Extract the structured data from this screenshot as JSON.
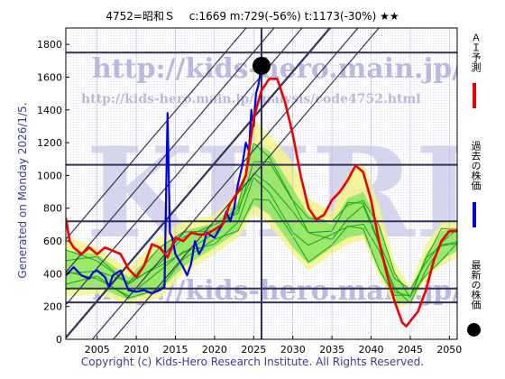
{
  "header": {
    "title": "4752=昭和Ｓ　 c:1669  m:729(-56%)  t:1173(-30%)  ★★"
  },
  "side_label": "Generated on Monday 2026/1/5.",
  "copyright": "Copyright (c) Kids-Hero Research Institute. All Rights Reserved.",
  "watermarks": {
    "url_top": "http://kids-hero.main.jp/",
    "url_mid": "http://kids-hero.main.jp/analysis/code4752.html",
    "url_bottom": "http://kids-hero.main.jp/",
    "logo": "KHRI"
  },
  "legend": {
    "ai_forecast": "ＡＩ予測",
    "past_price": "過去の株価",
    "latest_price": "最新の株価"
  },
  "colors": {
    "ai": "#ee0000",
    "past": "#0000dd",
    "latest": "#000000",
    "band_green": "#7ce35a",
    "band_yellow": "#f4f48c",
    "grid": "#33335a"
  },
  "chart_data": {
    "type": "line",
    "title": "4752=昭和Ｓ　 c:1669  m:729(-56%)  t:1173(-30%)  ★★",
    "xlabel": "",
    "ylabel": "",
    "xlim": [
      2001,
      2051
    ],
    "ylim": [
      0,
      1900
    ],
    "xticks": [
      2005,
      2010,
      2015,
      2020,
      2025,
      2030,
      2035,
      2040,
      2045,
      2050
    ],
    "yticks": [
      0,
      200,
      400,
      600,
      800,
      1000,
      1200,
      1400,
      1600,
      1800
    ],
    "grid": true,
    "annotations": {
      "current": 1669,
      "m": 729,
      "m_pct": -56,
      "t": 1173,
      "t_pct": -30,
      "rating": "★★"
    },
    "horizontal_lines": [
      225,
      310,
      720,
      1065,
      1750
    ],
    "vertical_line": 2026,
    "latest_point": [
      2026,
      1669
    ],
    "series": [
      {
        "name": "過去の株価",
        "color": "#0000dd",
        "points": [
          [
            2001,
            390
          ],
          [
            2001.6,
            420
          ],
          [
            2002,
            440
          ],
          [
            2003,
            390
          ],
          [
            2004,
            370
          ],
          [
            2004.5,
            410
          ],
          [
            2005,
            420
          ],
          [
            2006,
            380
          ],
          [
            2006.5,
            320
          ],
          [
            2007,
            390
          ],
          [
            2008,
            420
          ],
          [
            2009,
            300
          ],
          [
            2010,
            290
          ],
          [
            2011,
            300
          ],
          [
            2012,
            280
          ],
          [
            2013,
            300
          ],
          [
            2013.6,
            320
          ],
          [
            2014,
            1380
          ],
          [
            2014.3,
            650
          ],
          [
            2014.6,
            620
          ],
          [
            2015,
            520
          ],
          [
            2015.5,
            480
          ],
          [
            2016,
            440
          ],
          [
            2016.5,
            390
          ],
          [
            2017,
            460
          ],
          [
            2017.5,
            600
          ],
          [
            2018,
            520
          ],
          [
            2018.5,
            560
          ],
          [
            2019,
            650
          ],
          [
            2020,
            620
          ],
          [
            2021,
            700
          ],
          [
            2021.5,
            780
          ],
          [
            2022,
            720
          ],
          [
            2022.5,
            800
          ],
          [
            2023,
            950
          ],
          [
            2023.5,
            1050
          ],
          [
            2024,
            1200
          ],
          [
            2024.4,
            1150
          ],
          [
            2024.7,
            1400
          ],
          [
            2025,
            1300
          ],
          [
            2025.3,
            1500
          ],
          [
            2025.6,
            1550
          ],
          [
            2026,
            1669
          ]
        ]
      },
      {
        "name": "ＡＩ予測",
        "color": "#ee0000",
        "points": [
          [
            2001,
            740
          ],
          [
            2001.5,
            600
          ],
          [
            2002,
            560
          ],
          [
            2003,
            520
          ],
          [
            2004,
            560
          ],
          [
            2005,
            520
          ],
          [
            2006,
            560
          ],
          [
            2007,
            540
          ],
          [
            2008,
            520
          ],
          [
            2009,
            430
          ],
          [
            2010,
            380
          ],
          [
            2011,
            450
          ],
          [
            2012,
            580
          ],
          [
            2013,
            560
          ],
          [
            2014,
            500
          ],
          [
            2015,
            620
          ],
          [
            2016,
            600
          ],
          [
            2017,
            650
          ],
          [
            2018,
            640
          ],
          [
            2019,
            640
          ],
          [
            2020,
            670
          ],
          [
            2021,
            700
          ],
          [
            2022,
            830
          ],
          [
            2023,
            900
          ],
          [
            2024,
            1000
          ],
          [
            2025,
            1350
          ],
          [
            2026,
            1520
          ],
          [
            2027,
            1590
          ],
          [
            2028,
            1590
          ],
          [
            2029,
            1450
          ],
          [
            2030,
            1250
          ],
          [
            2031,
            1000
          ],
          [
            2032,
            800
          ],
          [
            2033,
            730
          ],
          [
            2034,
            760
          ],
          [
            2035,
            850
          ],
          [
            2036,
            900
          ],
          [
            2037,
            970
          ],
          [
            2038,
            1060
          ],
          [
            2039,
            1020
          ],
          [
            2040,
            850
          ],
          [
            2041,
            600
          ],
          [
            2042,
            400
          ],
          [
            2043,
            230
          ],
          [
            2044,
            100
          ],
          [
            2044.5,
            80
          ],
          [
            2045,
            110
          ],
          [
            2046,
            170
          ],
          [
            2047,
            300
          ],
          [
            2048,
            480
          ],
          [
            2049,
            600
          ],
          [
            2050,
            660
          ],
          [
            2051,
            660
          ]
        ]
      }
    ],
    "bands": {
      "yellow": {
        "upper": [
          [
            2001,
            630
          ],
          [
            2005,
            560
          ],
          [
            2009,
            430
          ],
          [
            2013,
            630
          ],
          [
            2016,
            720
          ],
          [
            2020,
            760
          ],
          [
            2023,
            900
          ],
          [
            2025,
            1350
          ],
          [
            2027,
            1250
          ],
          [
            2030,
            1080
          ],
          [
            2032,
            860
          ],
          [
            2035,
            780
          ],
          [
            2037,
            1000
          ],
          [
            2039,
            1080
          ],
          [
            2041,
            820
          ],
          [
            2043,
            470
          ],
          [
            2045,
            320
          ],
          [
            2047,
            580
          ],
          [
            2049,
            710
          ],
          [
            2051,
            720
          ]
        ],
        "lower": [
          [
            2001,
            260
          ],
          [
            2005,
            280
          ],
          [
            2009,
            210
          ],
          [
            2013,
            250
          ],
          [
            2016,
            400
          ],
          [
            2020,
            520
          ],
          [
            2023,
            620
          ],
          [
            2025,
            760
          ],
          [
            2027,
            700
          ],
          [
            2030,
            520
          ],
          [
            2032,
            420
          ],
          [
            2035,
            520
          ],
          [
            2037,
            580
          ],
          [
            2039,
            610
          ],
          [
            2041,
            390
          ],
          [
            2043,
            200
          ],
          [
            2045,
            210
          ],
          [
            2047,
            360
          ],
          [
            2049,
            450
          ],
          [
            2051,
            500
          ]
        ]
      },
      "green": {
        "upper": [
          [
            2001,
            540
          ],
          [
            2005,
            520
          ],
          [
            2009,
            380
          ],
          [
            2013,
            560
          ],
          [
            2016,
            660
          ],
          [
            2020,
            710
          ],
          [
            2023,
            840
          ],
          [
            2025,
            1200
          ],
          [
            2027,
            1150
          ],
          [
            2030,
            920
          ],
          [
            2032,
            760
          ],
          [
            2035,
            700
          ],
          [
            2037,
            860
          ],
          [
            2039,
            900
          ],
          [
            2041,
            700
          ],
          [
            2043,
            400
          ],
          [
            2045,
            290
          ],
          [
            2047,
            520
          ],
          [
            2049,
            660
          ],
          [
            2051,
            680
          ]
        ],
        "lower": [
          [
            2001,
            300
          ],
          [
            2005,
            320
          ],
          [
            2009,
            240
          ],
          [
            2013,
            300
          ],
          [
            2016,
            440
          ],
          [
            2020,
            560
          ],
          [
            2023,
            660
          ],
          [
            2025,
            820
          ],
          [
            2027,
            760
          ],
          [
            2030,
            560
          ],
          [
            2032,
            460
          ],
          [
            2035,
            560
          ],
          [
            2037,
            620
          ],
          [
            2039,
            640
          ],
          [
            2041,
            420
          ],
          [
            2043,
            230
          ],
          [
            2045,
            230
          ],
          [
            2047,
            390
          ],
          [
            2049,
            480
          ],
          [
            2051,
            540
          ]
        ]
      }
    }
  }
}
